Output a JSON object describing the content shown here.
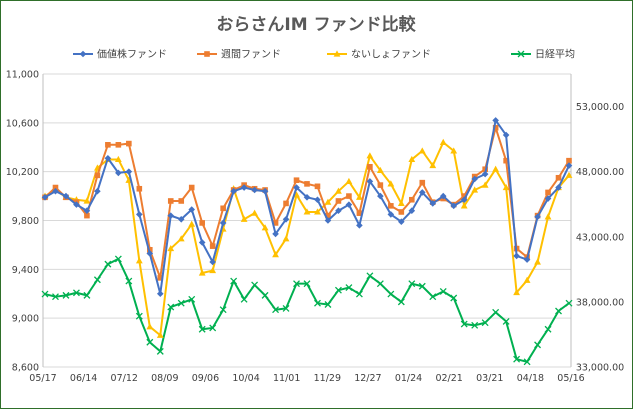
{
  "chart_data": {
    "type": "line",
    "title": "おらさんIM ファンド比較",
    "xlabel": "",
    "ylabel": "",
    "y2label": "",
    "x_ticks": [
      "05/17",
      "06/14",
      "07/12",
      "08/09",
      "09/06",
      "10/04",
      "11/01",
      "11/29",
      "12/27",
      "01/24",
      "02/21",
      "03/21",
      "04/18",
      "05/16"
    ],
    "ylim": [
      8600,
      11000
    ],
    "y_ticks": [
      "8,600",
      "9,000",
      "9,400",
      "9,800",
      "10,200",
      "10,600",
      "11,000"
    ],
    "y_tick_values": [
      8600,
      9000,
      9400,
      9800,
      10200,
      10600,
      11000
    ],
    "y2lim": [
      33000,
      55500
    ],
    "y2_ticks": [
      "33,000.00",
      "38,000.00",
      "43,000.00",
      "48,000.00",
      "53,000.00"
    ],
    "y2_tick_values": [
      33000,
      38000,
      43000,
      48000,
      53000
    ],
    "grid": true,
    "legend_position": "top",
    "series": [
      {
        "name": "価値株ファンド",
        "axis": "left",
        "color": "#4472c4",
        "marker": "diamond",
        "values": [
          9990,
          10040,
          10000,
          9930,
          9880,
          10040,
          10310,
          10190,
          10200,
          9850,
          9530,
          9200,
          9840,
          9810,
          9890,
          9620,
          9460,
          9780,
          10040,
          10070,
          10050,
          10040,
          9690,
          9810,
          10070,
          9990,
          9970,
          9800,
          9880,
          9930,
          9760,
          10120,
          10000,
          9850,
          9790,
          9880,
          10030,
          9940,
          10000,
          9920,
          9970,
          10140,
          10180,
          10620,
          10500,
          9510,
          9480,
          9830,
          9980,
          10070,
          10250
        ]
      },
      {
        "name": "週間ファンド",
        "axis": "left",
        "color": "#ed7d31",
        "marker": "square",
        "values": [
          9990,
          10070,
          9990,
          9950,
          9840,
          10170,
          10420,
          10420,
          10430,
          10060,
          9560,
          9330,
          9960,
          9960,
          10070,
          9780,
          9590,
          9900,
          10050,
          10090,
          10060,
          10050,
          9780,
          9940,
          10130,
          10100,
          10080,
          9840,
          9960,
          10000,
          9860,
          10240,
          10090,
          9920,
          9870,
          9970,
          10110,
          9950,
          9980,
          9930,
          10000,
          10160,
          10220,
          10560,
          10290,
          9570,
          9500,
          9840,
          10030,
          10150,
          10290
        ]
      },
      {
        "name": "ないしょファンド",
        "axis": "left",
        "color": "#ffc000",
        "marker": "triangle",
        "values": [
          10000,
          10050,
          9990,
          9970,
          9960,
          10230,
          10300,
          10300,
          10130,
          9470,
          8930,
          8860,
          9570,
          9650,
          9770,
          9370,
          9390,
          9730,
          10060,
          9810,
          9860,
          9740,
          9520,
          9650,
          10010,
          9870,
          9870,
          9950,
          10040,
          10120,
          9990,
          10330,
          10210,
          10100,
          9940,
          10300,
          10370,
          10250,
          10440,
          10370,
          9920,
          10050,
          10090,
          10220,
          10070,
          9210,
          9310,
          9460,
          9830,
          10070,
          10170
        ]
      },
      {
        "name": "日経平均",
        "axis": "right",
        "color": "#00b050",
        "marker": "x",
        "values": [
          38600,
          38400,
          38500,
          38700,
          38500,
          39700,
          40900,
          41300,
          39600,
          36900,
          34900,
          34200,
          37600,
          37900,
          38200,
          35900,
          36000,
          37400,
          39600,
          38200,
          39300,
          38500,
          37400,
          37500,
          39400,
          39400,
          37900,
          37800,
          38900,
          39100,
          38600,
          40000,
          39400,
          38600,
          38000,
          39400,
          39200,
          38400,
          38800,
          38300,
          36300,
          36200,
          36400,
          37200,
          36500,
          33600,
          33400,
          34700,
          35900,
          37300,
          37900
        ]
      }
    ]
  }
}
